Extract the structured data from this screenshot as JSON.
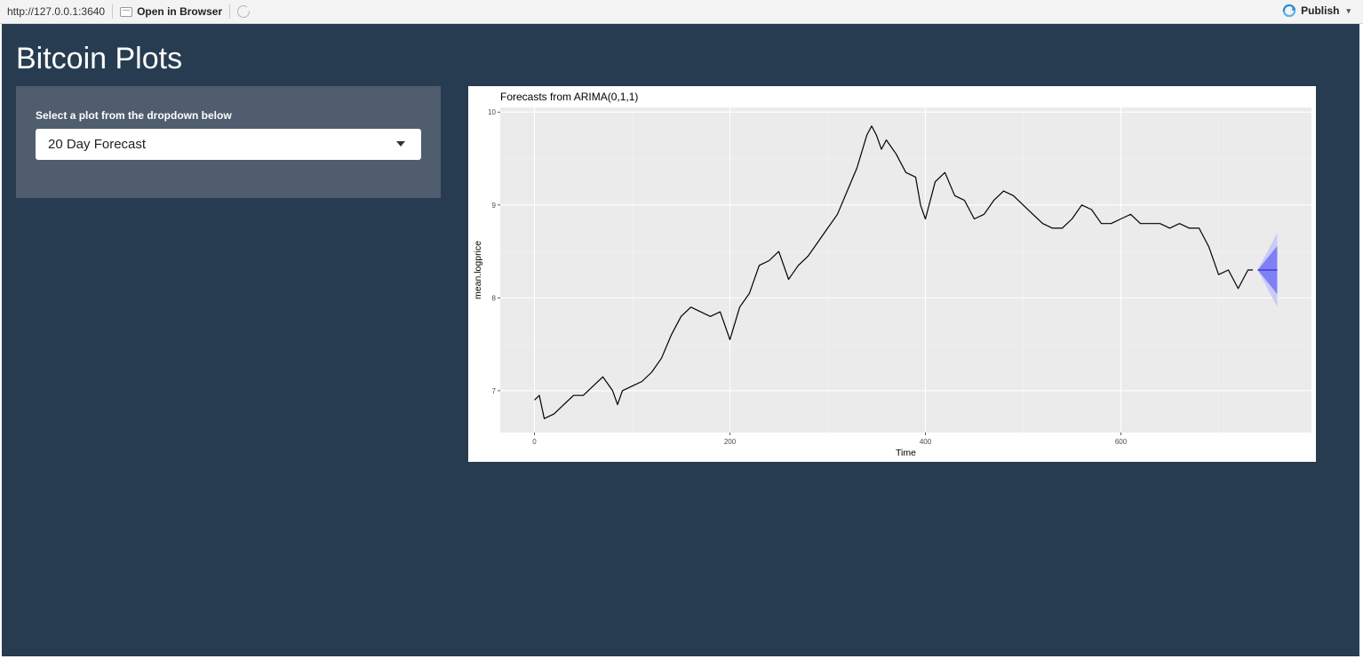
{
  "toolbar": {
    "url": "http://127.0.0.1:3640",
    "open_in_browser": "Open in Browser",
    "publish": "Publish",
    "icons": [
      "document-icon",
      "refresh-icon",
      "publish-icon",
      "chevron-down-icon"
    ]
  },
  "app": {
    "title": "Bitcoin Plots",
    "background": "#273c50",
    "sidebar": {
      "label": "Select a plot from the dropdown below",
      "selected": "20 Day Forecast"
    }
  },
  "chart_data": {
    "type": "line",
    "title": "Forecasts from ARIMA(0,1,1)",
    "xlabel": "Time",
    "ylabel": "mean.logprice",
    "xlim": [
      -35,
      795
    ],
    "ylim": [
      6.55,
      10.05
    ],
    "x_ticks": [
      0,
      200,
      400,
      600
    ],
    "y_ticks": [
      7,
      8,
      9,
      10
    ],
    "grid": true,
    "series": [
      {
        "values_x": [
          0,
          5,
          10,
          20,
          30,
          40,
          50,
          60,
          70,
          80,
          85,
          90,
          100,
          110,
          120,
          130,
          140,
          150,
          160,
          170,
          180,
          190,
          200,
          210,
          220,
          230,
          240,
          250,
          260,
          270,
          280,
          290,
          300,
          310,
          320,
          330,
          340,
          345,
          350,
          355,
          360,
          370,
          380,
          390,
          395,
          400,
          405,
          410,
          420,
          430,
          440,
          450,
          460,
          470,
          480,
          490,
          500,
          510,
          520,
          530,
          540,
          550,
          560,
          570,
          580,
          590,
          600,
          610,
          620,
          630,
          640,
          650,
          660,
          670,
          680,
          690,
          700,
          710,
          720,
          730,
          735
        ],
        "values_y": [
          6.9,
          6.95,
          6.7,
          6.75,
          6.85,
          6.95,
          6.95,
          7.05,
          7.15,
          7.0,
          6.85,
          7.0,
          7.05,
          7.1,
          7.2,
          7.35,
          7.6,
          7.8,
          7.9,
          7.85,
          7.8,
          7.85,
          7.55,
          7.9,
          8.05,
          8.35,
          8.4,
          8.5,
          8.2,
          8.35,
          8.45,
          8.6,
          8.75,
          8.9,
          9.15,
          9.4,
          9.75,
          9.85,
          9.75,
          9.6,
          9.7,
          9.55,
          9.35,
          9.3,
          9.0,
          8.85,
          9.05,
          9.25,
          9.35,
          9.1,
          9.05,
          8.85,
          8.9,
          9.05,
          9.15,
          9.1,
          9.0,
          8.9,
          8.8,
          8.75,
          8.75,
          8.85,
          9.0,
          8.95,
          8.8,
          8.8,
          8.85,
          8.9,
          8.8,
          8.8,
          8.8,
          8.75,
          8.8,
          8.75,
          8.75,
          8.55,
          8.25,
          8.3,
          8.1,
          8.3,
          8.3
        ]
      }
    ],
    "forecast": {
      "x_start": 740,
      "x_end": 760,
      "point": 8.3,
      "band80": [
        8.04,
        8.56
      ],
      "band95": [
        7.9,
        8.7
      ],
      "colors": {
        "point": "#3b3bdd",
        "band80": "#8080f5",
        "band95": "#cacaf7"
      }
    }
  }
}
